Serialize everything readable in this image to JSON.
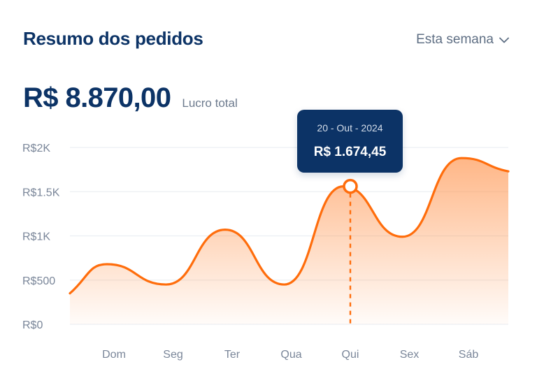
{
  "header": {
    "title": "Resumo dos pedidos",
    "period_label": "Esta semana"
  },
  "summary": {
    "total_value": "R$ 8.870,00",
    "total_label": "Lucro total"
  },
  "tooltip": {
    "date": "20 - Out - 2024",
    "value": "R$ 1.674,45"
  },
  "colors": {
    "brand": "#0c3366",
    "series": "#ff6d0c",
    "grid": "#eceff3",
    "axis_text": "#7a8699"
  },
  "icons": {
    "period_dropdown": "chevron-down-icon"
  },
  "chart_data": {
    "type": "area",
    "categories": [
      "Dom",
      "Seg",
      "Ter",
      "Qua",
      "Qui",
      "Sex",
      "Sáb"
    ],
    "y_ticks": [
      "R$0",
      "R$500",
      "R$1K",
      "R$1.5K",
      "R$2K"
    ],
    "ylim": [
      0,
      2000
    ],
    "grid": true,
    "series": [
      {
        "values": [
          680,
          450,
          1070,
          450,
          1560,
          990,
          1880
        ],
        "start_value": 350,
        "end_value": 1730
      }
    ],
    "highlight": {
      "category": "Qui",
      "value": 1560
    }
  }
}
